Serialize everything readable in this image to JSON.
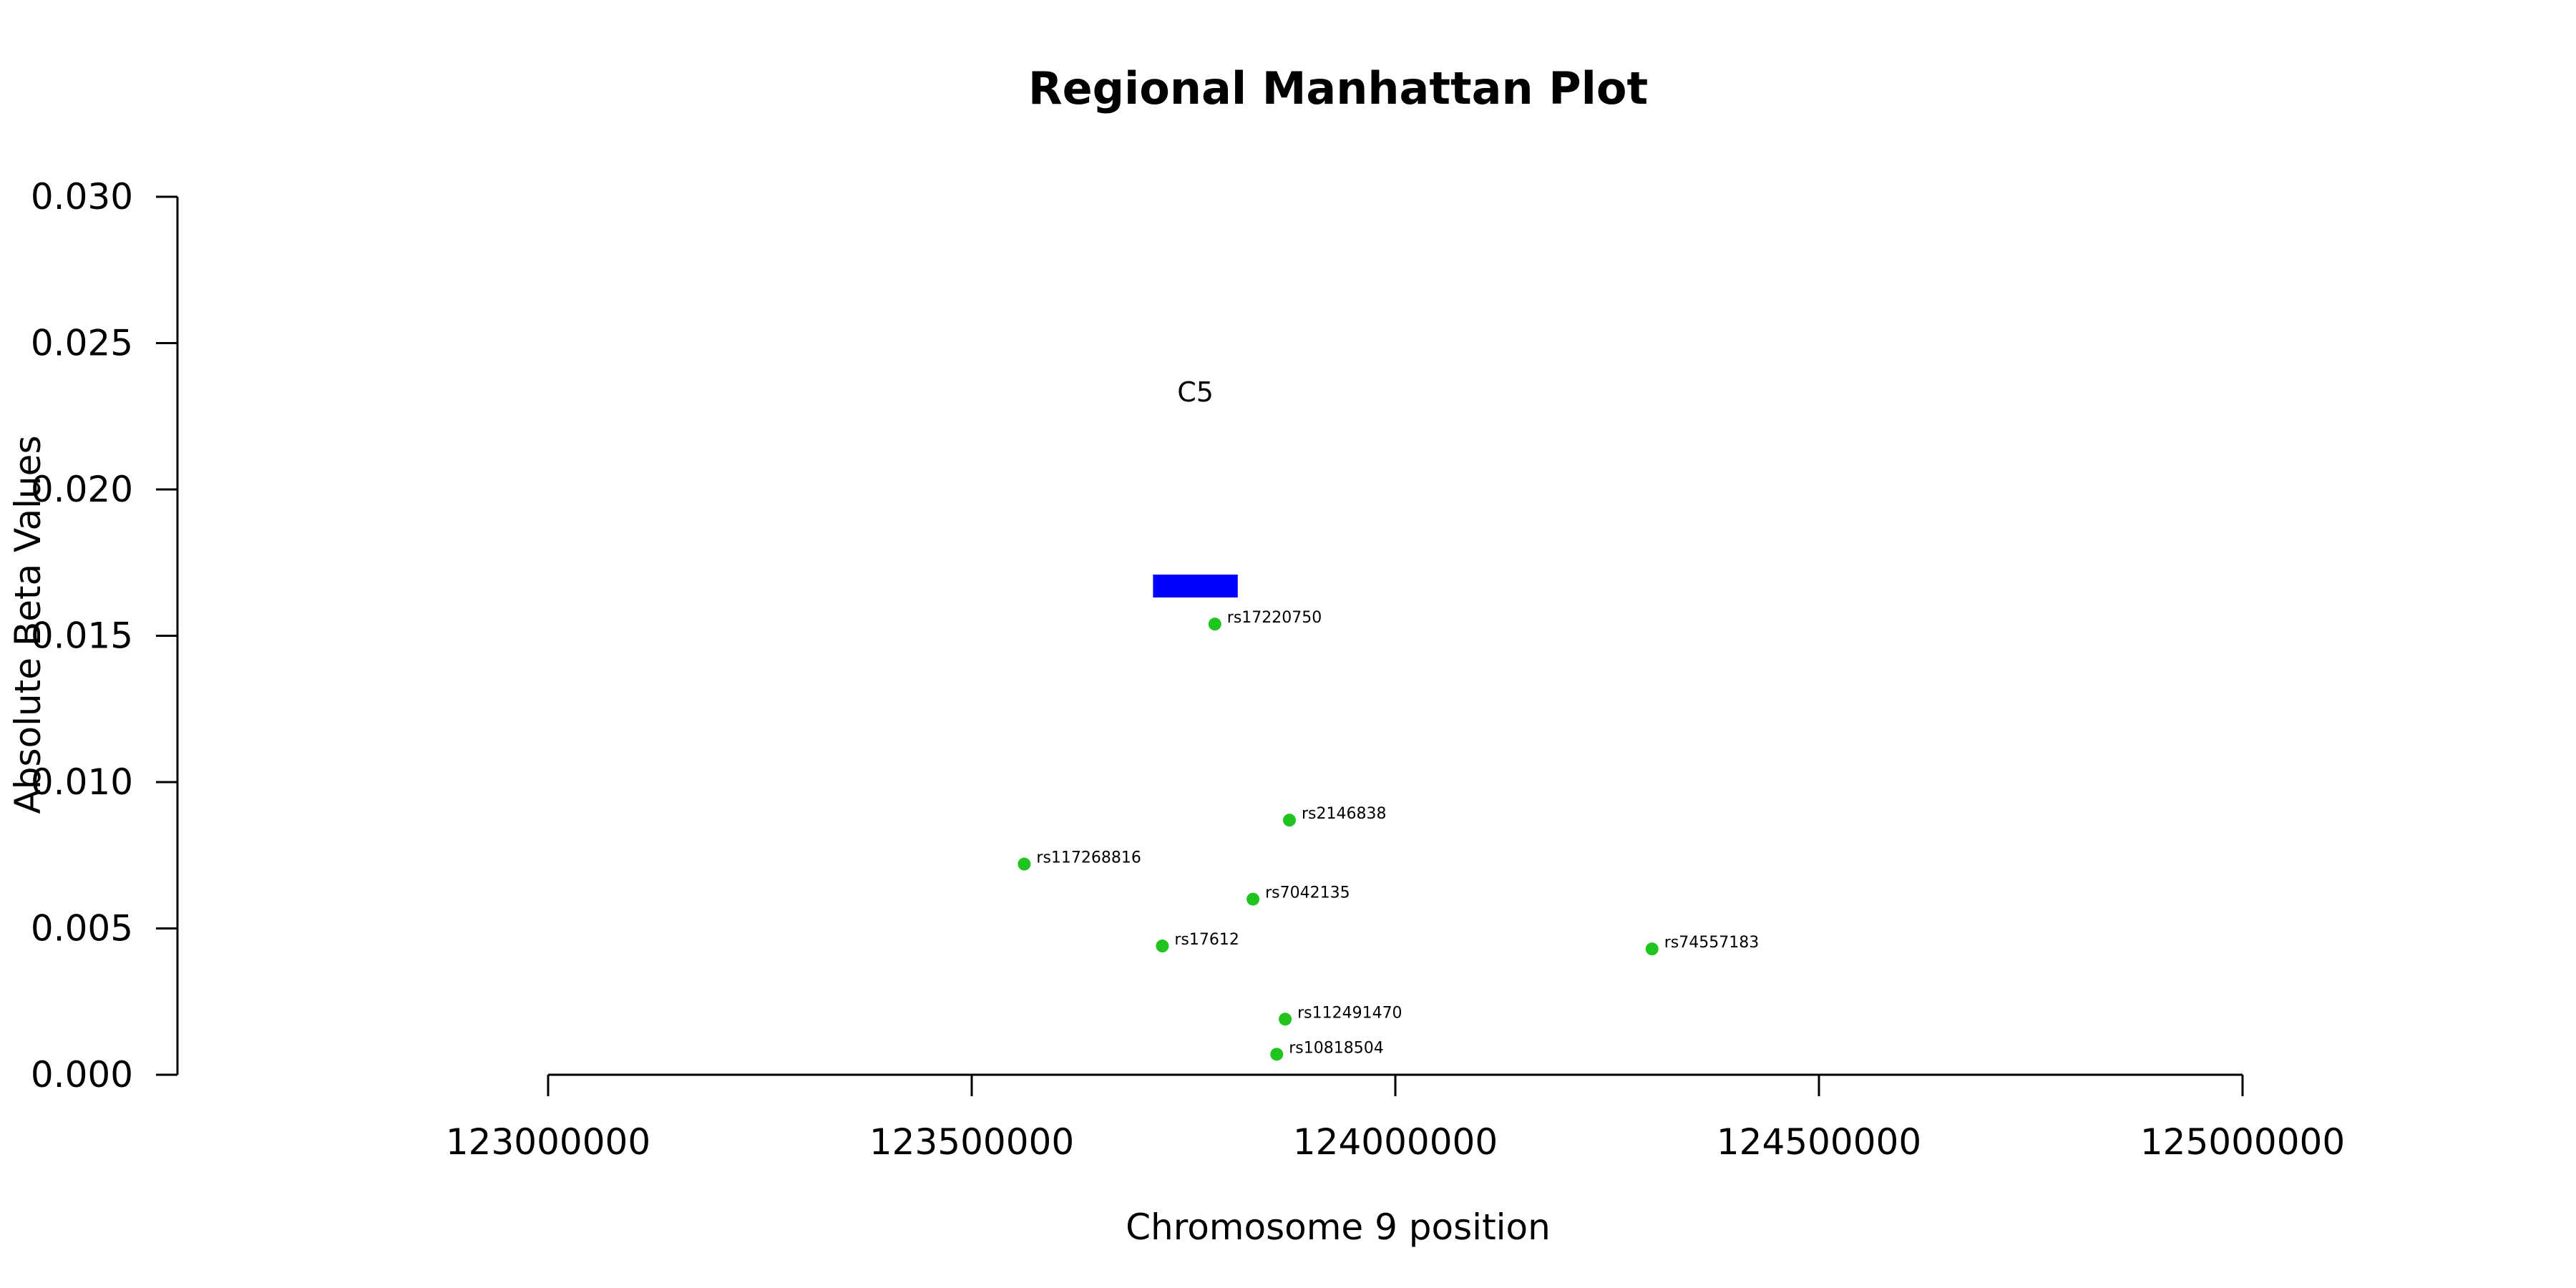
{
  "chart_data": {
    "type": "scatter",
    "title": "Regional Manhattan Plot",
    "xlabel": "Chromosome 9 position",
    "ylabel": "Absolute Beta Values",
    "xlim": [
      123000000,
      125000000
    ],
    "ylim": [
      0,
      0.03
    ],
    "x_ticks": [
      123000000,
      123500000,
      124000000,
      124500000,
      125000000
    ],
    "x_tick_labels": [
      "123000000",
      "123500000",
      "124000000",
      "124500000",
      "125000000"
    ],
    "y_ticks": [
      0,
      0.005,
      0.01,
      0.015,
      0.02,
      0.025,
      0.03
    ],
    "y_tick_labels": [
      "0.000",
      "0.005",
      "0.010",
      "0.015",
      "0.020",
      "0.025",
      "0.030"
    ],
    "grid": false,
    "colors": {
      "points": "#1fc41f",
      "gene": "#0000ff",
      "axis": "#000000"
    },
    "points": [
      {
        "label": "rs17220750",
        "x": 123787000,
        "y": 0.0154
      },
      {
        "label": "rs2146838",
        "x": 123875000,
        "y": 0.0087
      },
      {
        "label": "rs117268816",
        "x": 123562000,
        "y": 0.0072
      },
      {
        "label": "rs7042135",
        "x": 123832000,
        "y": 0.006
      },
      {
        "label": "rs17612",
        "x": 123725000,
        "y": 0.0044
      },
      {
        "label": "rs74557183",
        "x": 124303000,
        "y": 0.0043
      },
      {
        "label": "rs112491470",
        "x": 123870000,
        "y": 0.0019
      },
      {
        "label": "rs10818504",
        "x": 123860000,
        "y": 0.0007
      }
    ],
    "genes": [
      {
        "name": "C5",
        "start": 123714000,
        "end": 123814000,
        "y": 0.0167
      }
    ]
  }
}
